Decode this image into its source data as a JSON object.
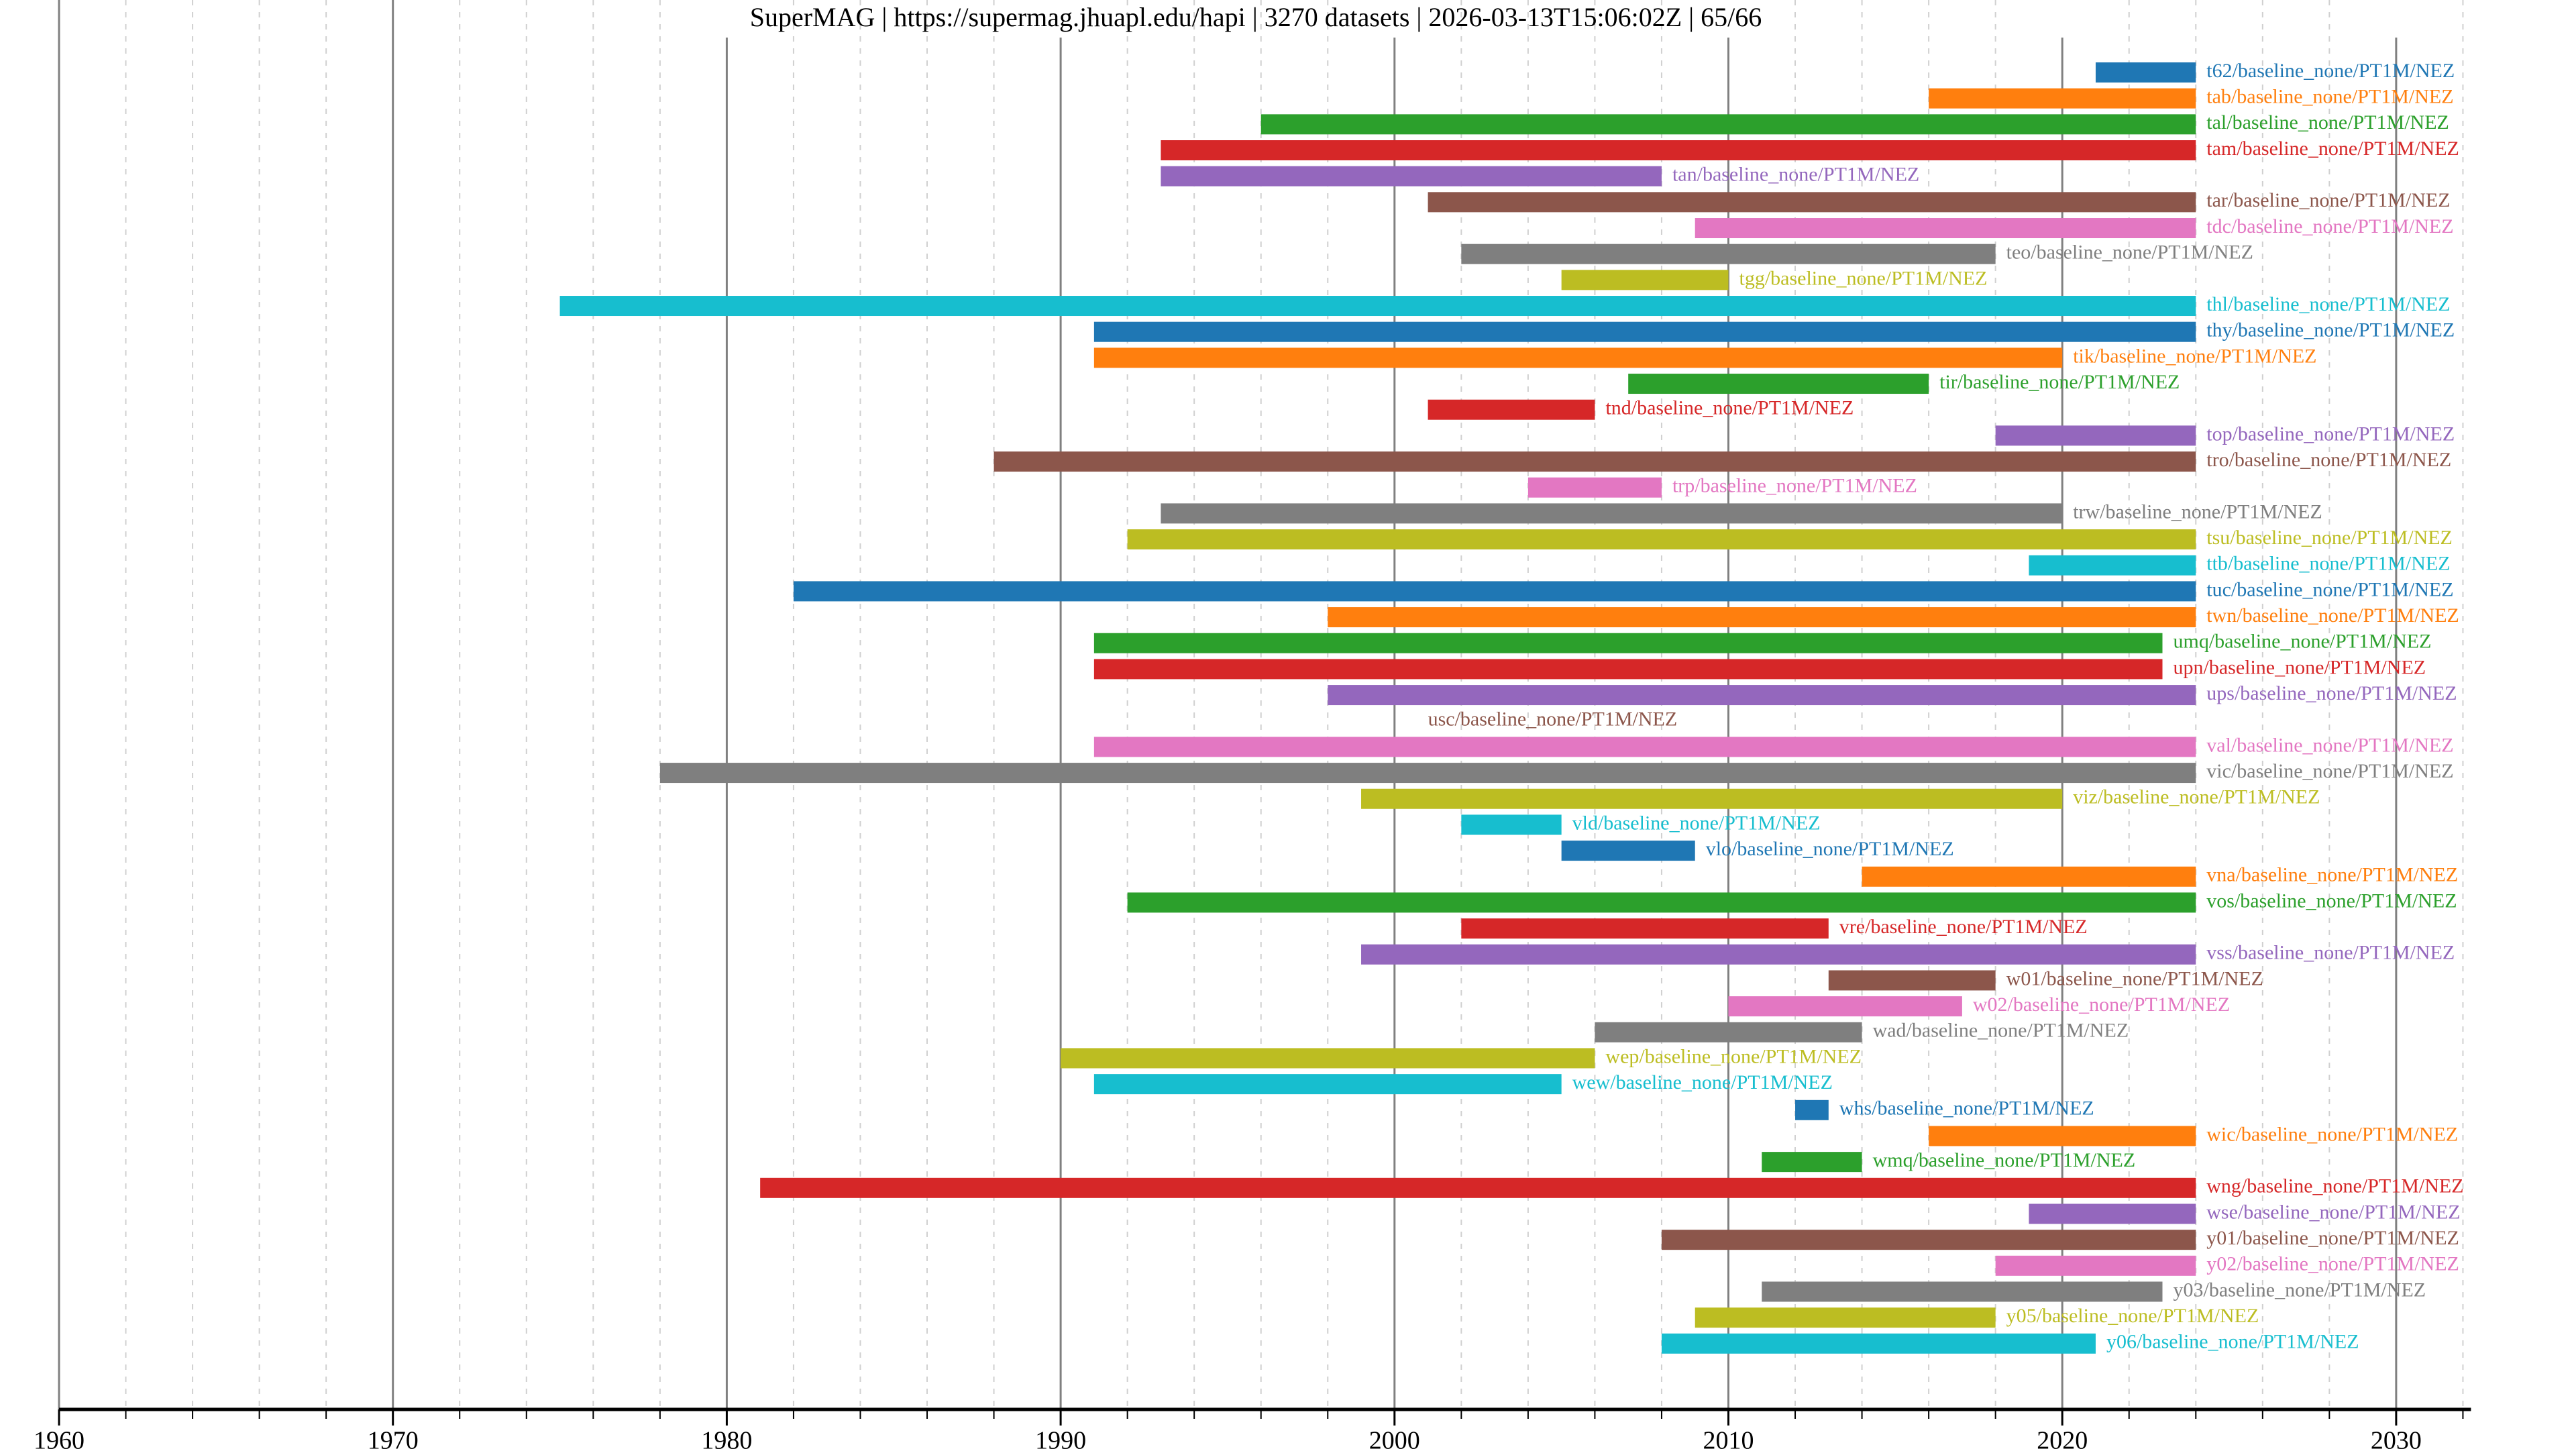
{
  "chart_data": {
    "type": "timeline",
    "title": "SuperMAG | https://supermag.jhuapl.edu/hapi | 3270 datasets | 2026-03-13T15:06:02Z | 65/66",
    "xlabel": "",
    "ylabel": "",
    "xlim": [
      1960,
      2032
    ],
    "x_ticks": [
      1960,
      1970,
      1980,
      1990,
      2000,
      2010,
      2020,
      2030
    ],
    "x_tick_labels": [
      "1960",
      "1970",
      "1980",
      "1990",
      "2000",
      "2010",
      "2020",
      "2030"
    ],
    "minor_tick_step_years": 2,
    "grid": {
      "major": "solid gray",
      "minor": "dashed light gray"
    },
    "legend": "none",
    "palette": [
      "#1f77b4",
      "#ff7f0e",
      "#2ca02c",
      "#d62728",
      "#9467bd",
      "#8c564b",
      "#e377c2",
      "#7f7f7f",
      "#bcbd22",
      "#17becf"
    ],
    "series": [
      {
        "name": "t62/baseline_none/PT1M/NEZ",
        "start": 2021,
        "end": 2024,
        "color": "#1f77b4"
      },
      {
        "name": "tab/baseline_none/PT1M/NEZ",
        "start": 2016,
        "end": 2024,
        "color": "#ff7f0e"
      },
      {
        "name": "tal/baseline_none/PT1M/NEZ",
        "start": 1996,
        "end": 2024,
        "color": "#2ca02c"
      },
      {
        "name": "tam/baseline_none/PT1M/NEZ",
        "start": 1993,
        "end": 2024,
        "color": "#d62728"
      },
      {
        "name": "tan/baseline_none/PT1M/NEZ",
        "start": 1993,
        "end": 2008,
        "color": "#9467bd"
      },
      {
        "name": "tar/baseline_none/PT1M/NEZ",
        "start": 2001,
        "end": 2024,
        "color": "#8c564b"
      },
      {
        "name": "tdc/baseline_none/PT1M/NEZ",
        "start": 2009,
        "end": 2024,
        "color": "#e377c2"
      },
      {
        "name": "teo/baseline_none/PT1M/NEZ",
        "start": 2002,
        "end": 2018,
        "color": "#7f7f7f"
      },
      {
        "name": "tgg/baseline_none/PT1M/NEZ",
        "start": 2005,
        "end": 2010,
        "color": "#bcbd22"
      },
      {
        "name": "thl/baseline_none/PT1M/NEZ",
        "start": 1975,
        "end": 2024,
        "color": "#17becf"
      },
      {
        "name": "thy/baseline_none/PT1M/NEZ",
        "start": 1991,
        "end": 2024,
        "color": "#1f77b4"
      },
      {
        "name": "tik/baseline_none/PT1M/NEZ",
        "start": 1991,
        "end": 2020,
        "color": "#ff7f0e"
      },
      {
        "name": "tir/baseline_none/PT1M/NEZ",
        "start": 2007,
        "end": 2016,
        "color": "#2ca02c"
      },
      {
        "name": "tnd/baseline_none/PT1M/NEZ",
        "start": 2001,
        "end": 2006,
        "color": "#d62728"
      },
      {
        "name": "top/baseline_none/PT1M/NEZ",
        "start": 2018,
        "end": 2024,
        "color": "#9467bd"
      },
      {
        "name": "tro/baseline_none/PT1M/NEZ",
        "start": 1988,
        "end": 2024,
        "color": "#8c564b"
      },
      {
        "name": "trp/baseline_none/PT1M/NEZ",
        "start": 2004,
        "end": 2008,
        "color": "#e377c2"
      },
      {
        "name": "trw/baseline_none/PT1M/NEZ",
        "start": 1993,
        "end": 2020,
        "color": "#7f7f7f"
      },
      {
        "name": "tsu/baseline_none/PT1M/NEZ",
        "start": 1992,
        "end": 2024,
        "color": "#bcbd22"
      },
      {
        "name": "ttb/baseline_none/PT1M/NEZ",
        "start": 2019,
        "end": 2024,
        "color": "#17becf"
      },
      {
        "name": "tuc/baseline_none/PT1M/NEZ",
        "start": 1982,
        "end": 2024,
        "color": "#1f77b4"
      },
      {
        "name": "twn/baseline_none/PT1M/NEZ",
        "start": 1998,
        "end": 2024,
        "color": "#ff7f0e"
      },
      {
        "name": "umq/baseline_none/PT1M/NEZ",
        "start": 1991,
        "end": 2023,
        "color": "#2ca02c"
      },
      {
        "name": "upn/baseline_none/PT1M/NEZ",
        "start": 1991,
        "end": 2023,
        "color": "#d62728"
      },
      {
        "name": "ups/baseline_none/PT1M/NEZ",
        "start": 1998,
        "end": 2024,
        "color": "#9467bd"
      },
      {
        "name": "usc/baseline_none/PT1M/NEZ",
        "start": null,
        "end": null,
        "label_at": 2001,
        "color": "#8c564b"
      },
      {
        "name": "val/baseline_none/PT1M/NEZ",
        "start": 1991,
        "end": 2024,
        "color": "#e377c2"
      },
      {
        "name": "vic/baseline_none/PT1M/NEZ",
        "start": 1978,
        "end": 2024,
        "color": "#7f7f7f"
      },
      {
        "name": "viz/baseline_none/PT1M/NEZ",
        "start": 1999,
        "end": 2020,
        "color": "#bcbd22"
      },
      {
        "name": "vld/baseline_none/PT1M/NEZ",
        "start": 2002,
        "end": 2005,
        "color": "#17becf"
      },
      {
        "name": "vlo/baseline_none/PT1M/NEZ",
        "start": 2005,
        "end": 2009,
        "color": "#1f77b4"
      },
      {
        "name": "vna/baseline_none/PT1M/NEZ",
        "start": 2014,
        "end": 2024,
        "color": "#ff7f0e"
      },
      {
        "name": "vos/baseline_none/PT1M/NEZ",
        "start": 1992,
        "end": 2024,
        "color": "#2ca02c"
      },
      {
        "name": "vre/baseline_none/PT1M/NEZ",
        "start": 2002,
        "end": 2013,
        "color": "#d62728"
      },
      {
        "name": "vss/baseline_none/PT1M/NEZ",
        "start": 1999,
        "end": 2024,
        "color": "#9467bd"
      },
      {
        "name": "w01/baseline_none/PT1M/NEZ",
        "start": 2013,
        "end": 2018,
        "color": "#8c564b"
      },
      {
        "name": "w02/baseline_none/PT1M/NEZ",
        "start": 2010,
        "end": 2017,
        "color": "#e377c2"
      },
      {
        "name": "wad/baseline_none/PT1M/NEZ",
        "start": 2006,
        "end": 2014,
        "color": "#7f7f7f"
      },
      {
        "name": "wep/baseline_none/PT1M/NEZ",
        "start": 1990,
        "end": 2006,
        "color": "#bcbd22"
      },
      {
        "name": "wew/baseline_none/PT1M/NEZ",
        "start": 1991,
        "end": 2005,
        "color": "#17becf"
      },
      {
        "name": "whs/baseline_none/PT1M/NEZ",
        "start": 2012,
        "end": 2013,
        "color": "#1f77b4"
      },
      {
        "name": "wic/baseline_none/PT1M/NEZ",
        "start": 2016,
        "end": 2024,
        "color": "#ff7f0e"
      },
      {
        "name": "wmq/baseline_none/PT1M/NEZ",
        "start": 2011,
        "end": 2014,
        "color": "#2ca02c"
      },
      {
        "name": "wng/baseline_none/PT1M/NEZ",
        "start": 1981,
        "end": 2024,
        "color": "#d62728"
      },
      {
        "name": "wse/baseline_none/PT1M/NEZ",
        "start": 2019,
        "end": 2024,
        "color": "#9467bd"
      },
      {
        "name": "y01/baseline_none/PT1M/NEZ",
        "start": 2008,
        "end": 2024,
        "color": "#8c564b"
      },
      {
        "name": "y02/baseline_none/PT1M/NEZ",
        "start": 2018,
        "end": 2024,
        "color": "#e377c2"
      },
      {
        "name": "y03/baseline_none/PT1M/NEZ",
        "start": 2011,
        "end": 2023,
        "color": "#7f7f7f"
      },
      {
        "name": "y05/baseline_none/PT1M/NEZ",
        "start": 2009,
        "end": 2018,
        "color": "#bcbd22"
      },
      {
        "name": "y06/baseline_none/PT1M/NEZ",
        "start": 2008,
        "end": 2021,
        "color": "#17becf"
      }
    ]
  }
}
